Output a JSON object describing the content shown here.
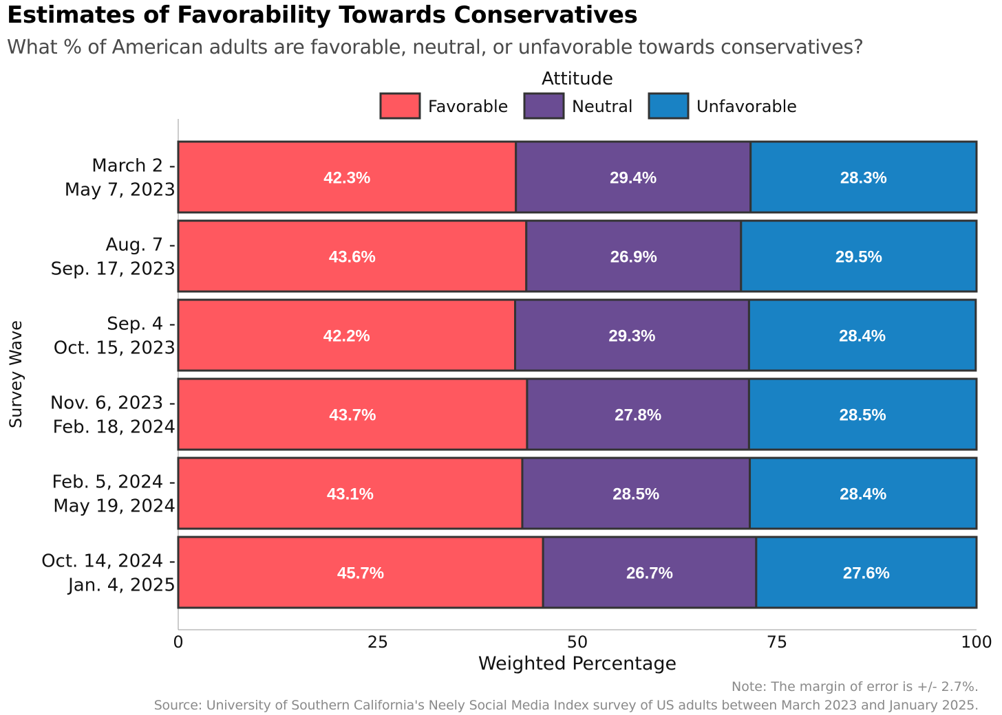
{
  "chart_data": {
    "type": "bar",
    "orientation": "horizontal",
    "stacked": true,
    "title": "Estimates of Favorability Towards Conservatives",
    "subtitle": "What % of American adults are favorable, neutral, or unfavorable towards conservatives?",
    "xlabel": "Weighted Percentage",
    "ylabel": "Survey Wave",
    "xlim": [
      0,
      100
    ],
    "xticks": [
      "0",
      "25",
      "50",
      "75",
      "100"
    ],
    "legend": {
      "title": "Attitude",
      "placement": "top-center",
      "entries": [
        "Favorable",
        "Neutral",
        "Unfavorable"
      ]
    },
    "categories": [
      [
        "March 2 -",
        "May 7, 2023"
      ],
      [
        "Aug. 7 -",
        "Sep. 17, 2023"
      ],
      [
        "Sep. 4 -",
        "Oct. 15, 2023"
      ],
      [
        "Nov. 6, 2023 -",
        "Feb. 18, 2024"
      ],
      [
        "Feb. 5, 2024 -",
        "May 19, 2024"
      ],
      [
        "Oct. 14, 2024 -",
        "Jan. 4, 2025"
      ]
    ],
    "series": [
      {
        "name": "Favorable",
        "color": "#ff585f",
        "values": [
          42.3,
          43.6,
          42.2,
          43.7,
          43.1,
          45.7
        ],
        "labels": [
          "42.3%",
          "43.6%",
          "42.2%",
          "43.7%",
          "43.1%",
          "45.7%"
        ]
      },
      {
        "name": "Neutral",
        "color": "#6a4c93",
        "values": [
          29.4,
          26.9,
          29.3,
          27.8,
          28.5,
          26.7
        ],
        "labels": [
          "29.4%",
          "26.9%",
          "29.3%",
          "27.8%",
          "28.5%",
          "26.7%"
        ]
      },
      {
        "name": "Unfavorable",
        "color": "#1982c4",
        "values": [
          28.3,
          29.5,
          28.4,
          28.5,
          28.4,
          27.6
        ],
        "labels": [
          "28.3%",
          "29.5%",
          "28.4%",
          "28.5%",
          "28.4%",
          "27.6%"
        ]
      }
    ],
    "grid": false
  },
  "footer": {
    "note": "Note: The margin of error is +/- 2.7%.",
    "source": "Source: University of Southern California's Neely Social Media Index survey of US adults between March 2023 and January 2025."
  }
}
